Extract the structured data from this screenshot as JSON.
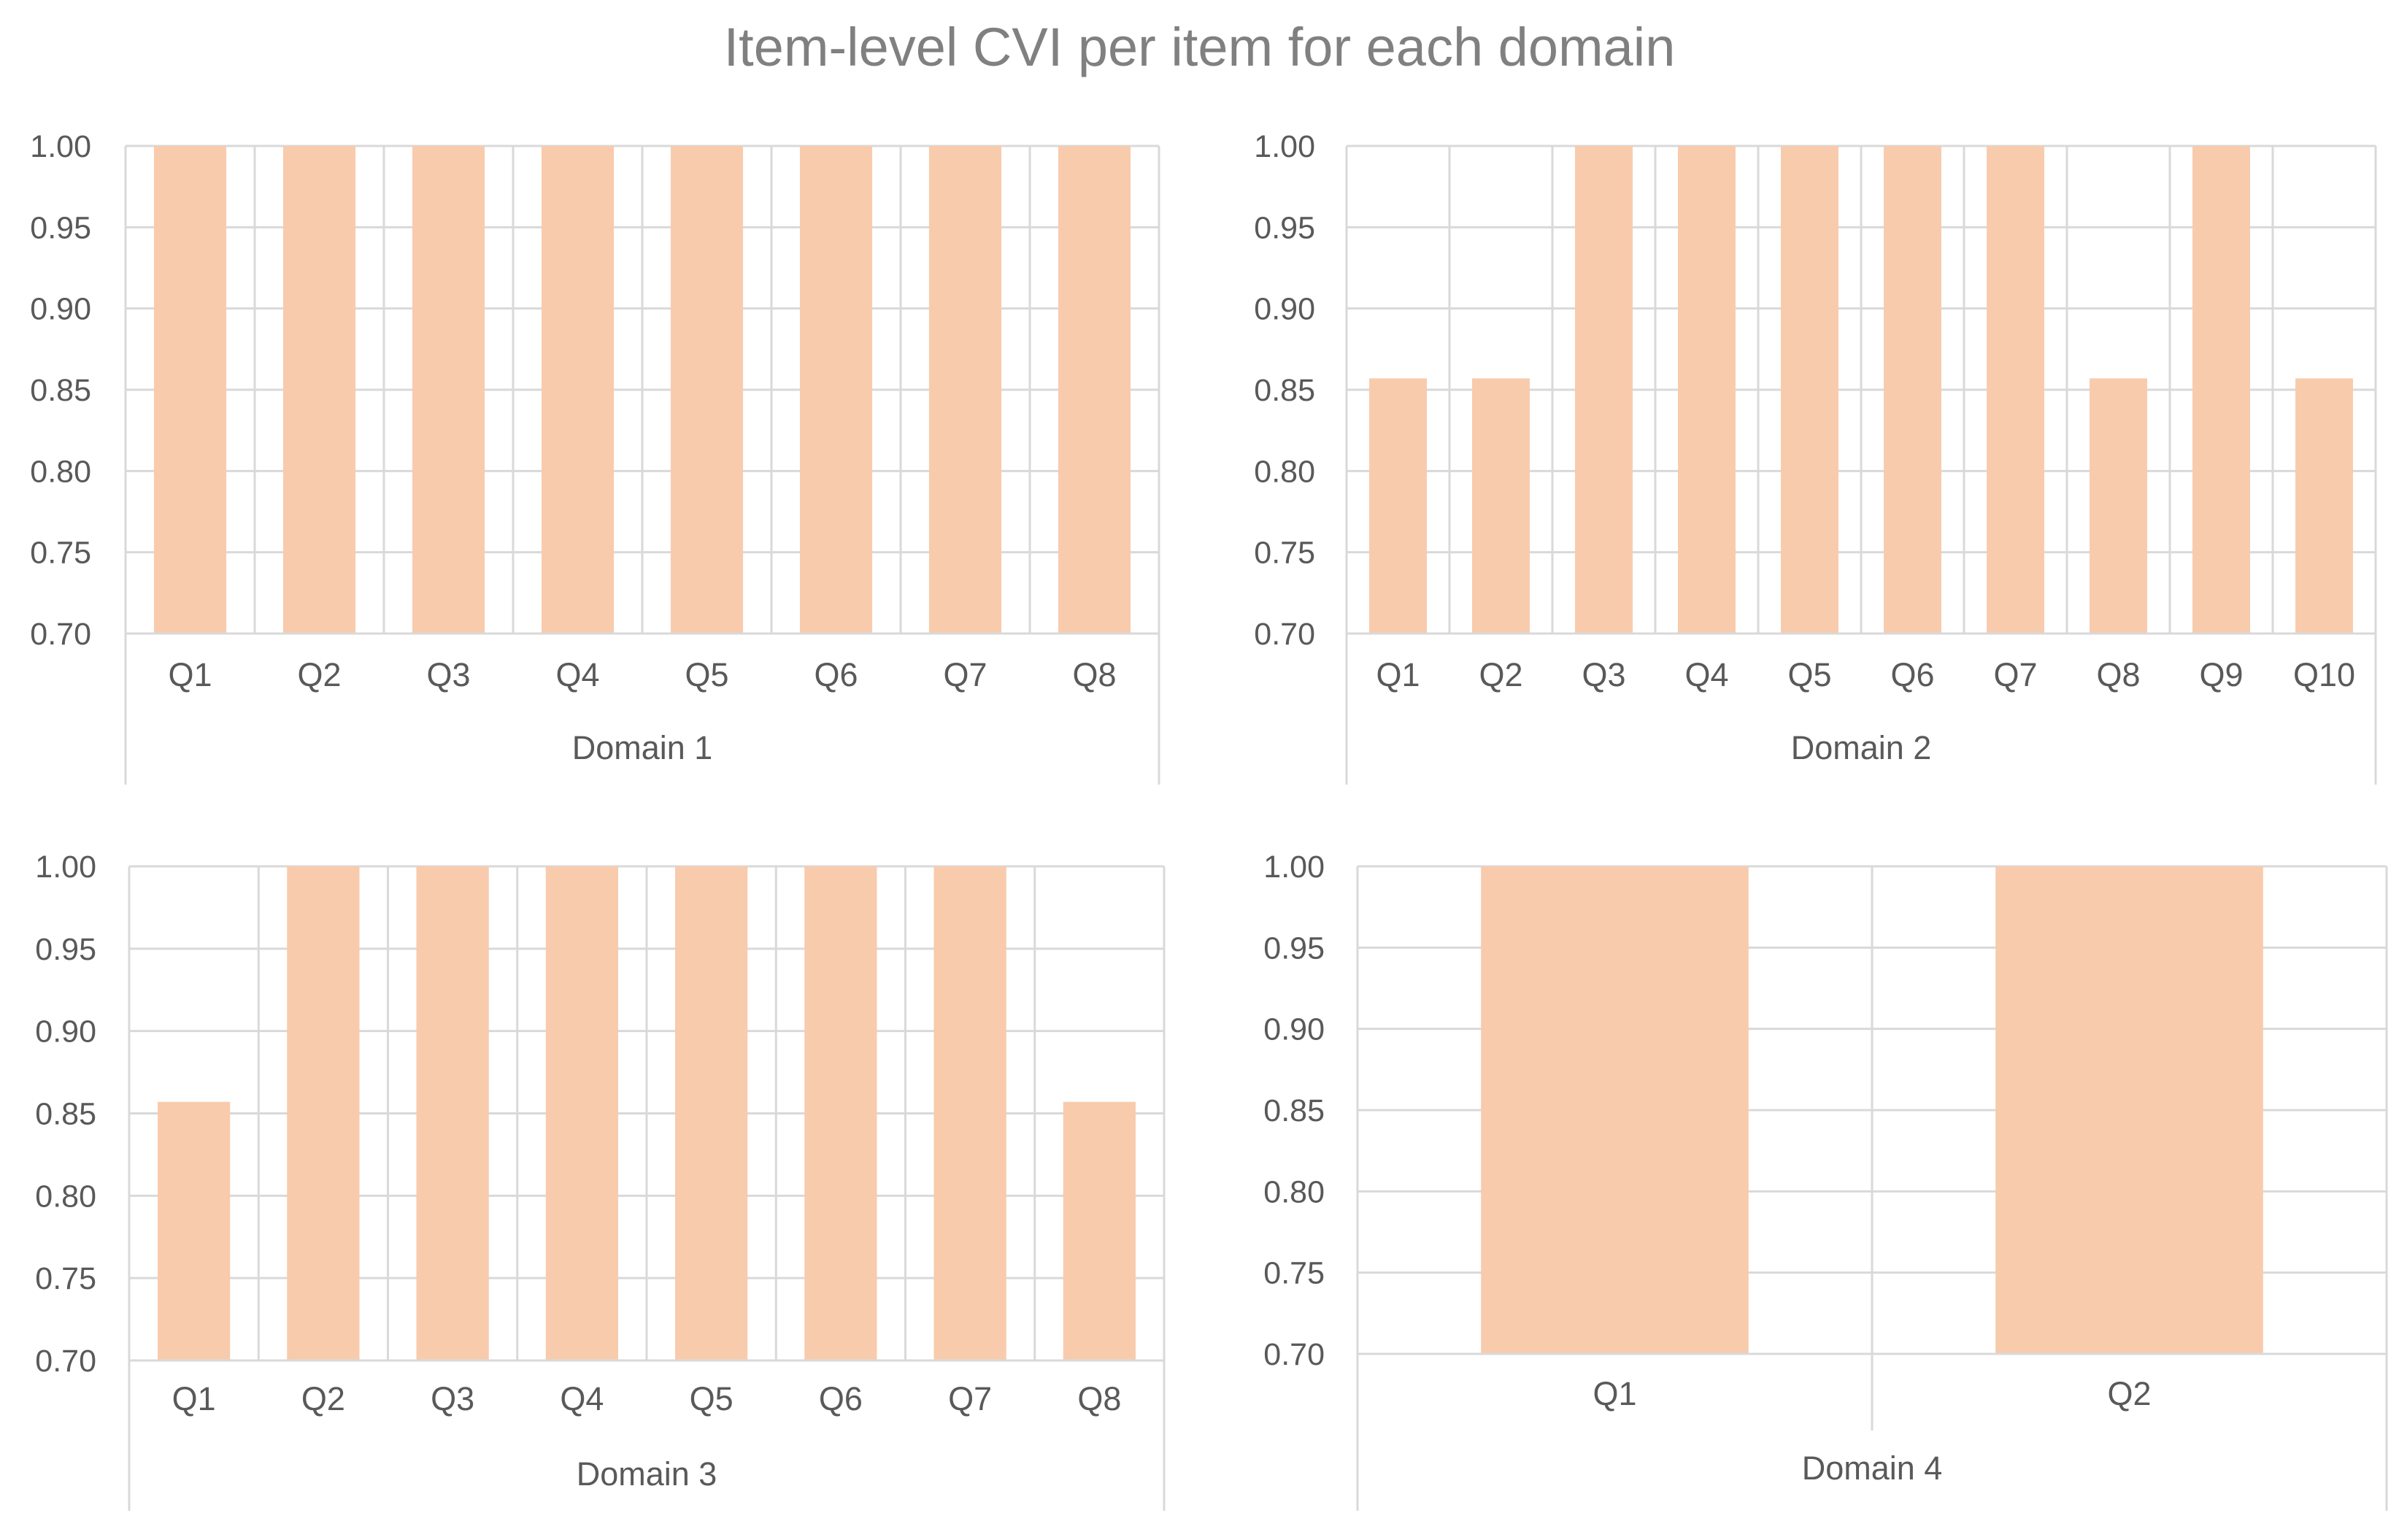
{
  "title": "Item-level CVI per item for each domain",
  "colors": {
    "bar": "#F8CBAD",
    "grid": "#D9D9D9",
    "text": "#595959",
    "title": "#808080"
  },
  "chart_data": [
    {
      "type": "bar",
      "group_label": "Domain 1",
      "categories": [
        "Q1",
        "Q2",
        "Q3",
        "Q4",
        "Q5",
        "Q6",
        "Q7",
        "Q8"
      ],
      "values": [
        1.0,
        1.0,
        1.0,
        1.0,
        1.0,
        1.0,
        1.0,
        1.0
      ],
      "ylim": [
        0.7,
        1.0
      ],
      "yticks": [
        "0.70",
        "0.75",
        "0.80",
        "0.85",
        "0.90",
        "0.95",
        "1.00"
      ],
      "grid": true
    },
    {
      "type": "bar",
      "group_label": "Domain 2",
      "categories": [
        "Q1",
        "Q2",
        "Q3",
        "Q4",
        "Q5",
        "Q6",
        "Q7",
        "Q8",
        "Q9",
        "Q10"
      ],
      "values": [
        0.857,
        0.857,
        1.0,
        1.0,
        1.0,
        1.0,
        1.0,
        0.857,
        1.0,
        0.857
      ],
      "ylim": [
        0.7,
        1.0
      ],
      "yticks": [
        "0.70",
        "0.75",
        "0.80",
        "0.85",
        "0.90",
        "0.95",
        "1.00"
      ],
      "grid": true
    },
    {
      "type": "bar",
      "group_label": "Domain 3",
      "categories": [
        "Q1",
        "Q2",
        "Q3",
        "Q4",
        "Q5",
        "Q6",
        "Q7",
        "Q8"
      ],
      "values": [
        0.857,
        1.0,
        1.0,
        1.0,
        1.0,
        1.0,
        1.0,
        0.857
      ],
      "ylim": [
        0.7,
        1.0
      ],
      "yticks": [
        "0.70",
        "0.75",
        "0.80",
        "0.85",
        "0.90",
        "0.95",
        "1.00"
      ],
      "grid": true
    },
    {
      "type": "bar",
      "group_label": "Domain 4",
      "categories": [
        "Q1",
        "Q2"
      ],
      "values": [
        1.0,
        1.0
      ],
      "ylim": [
        0.7,
        1.0
      ],
      "yticks": [
        "0.70",
        "0.75",
        "0.80",
        "0.85",
        "0.90",
        "0.95",
        "1.00"
      ],
      "grid": true
    }
  ]
}
